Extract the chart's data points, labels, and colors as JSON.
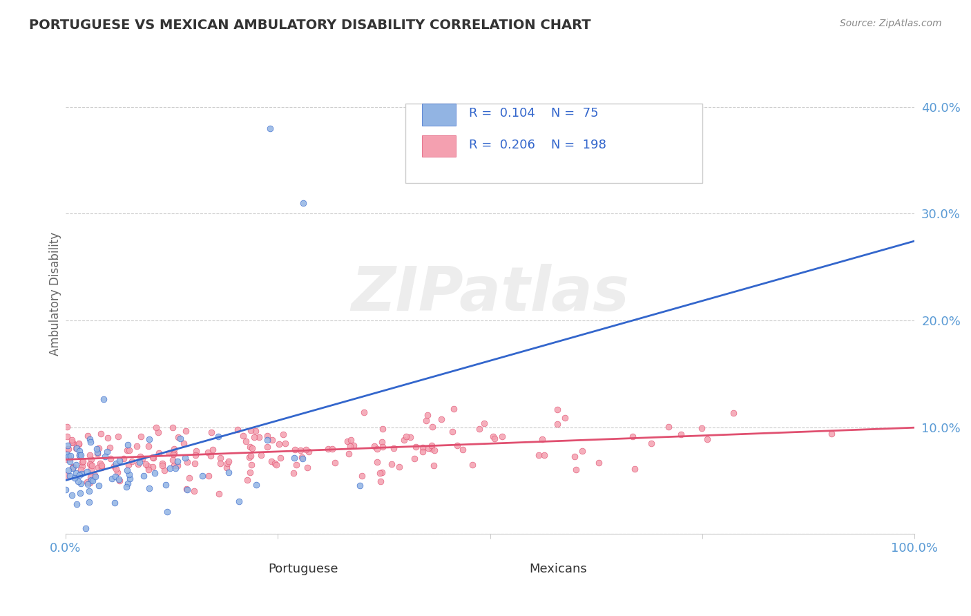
{
  "title": "PORTUGUESE VS MEXICAN AMBULATORY DISABILITY CORRELATION CHART",
  "source_text": "Source: ZipAtlas.com",
  "xlabel": "",
  "ylabel": "Ambulatory Disability",
  "watermark": "ZIPatlas",
  "series": [
    {
      "name": "Portuguese",
      "R": 0.104,
      "N": 75,
      "color": "#92b4e3",
      "line_color": "#3366cc",
      "marker": "o"
    },
    {
      "name": "Mexicans",
      "R": 0.206,
      "N": 198,
      "color": "#f4a0b0",
      "line_color": "#e05070",
      "marker": "o"
    }
  ],
  "xlim": [
    0.0,
    1.0
  ],
  "ylim": [
    0.0,
    0.45
  ],
  "yticks": [
    0.0,
    0.1,
    0.2,
    0.3,
    0.4
  ],
  "ytick_labels": [
    "",
    "10.0%",
    "20.0%",
    "30.0%",
    "40.0%"
  ],
  "xticks": [
    0.0,
    0.25,
    0.5,
    0.75,
    1.0
  ],
  "xtick_labels": [
    "0.0%",
    "",
    "",
    "",
    "100.0%"
  ],
  "background_color": "#ffffff",
  "grid_color": "#cccccc",
  "title_color": "#333333",
  "axis_label_color": "#666666",
  "tick_label_color": "#5b9bd5",
  "legend_R_color": "#3366cc",
  "legend_N_color": "#333333"
}
